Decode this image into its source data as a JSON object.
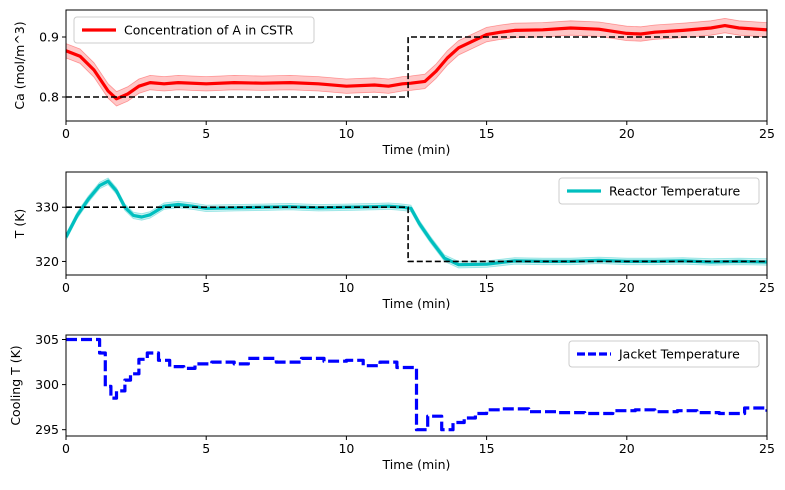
{
  "chart_data": [
    {
      "type": "line",
      "xlabel": "Time (min)",
      "ylabel": "Ca (mol/m^3)",
      "xlim": [
        0,
        25
      ],
      "ylim": [
        0.76,
        0.945
      ],
      "xticks": [
        0,
        5,
        10,
        15,
        20,
        25
      ],
      "yticks": [
        0.8,
        0.9
      ],
      "ytick_labels": [
        "0.8",
        "0.9"
      ],
      "legend_position": "upper-left",
      "series": [
        {
          "name": "Concentration of A in CSTR",
          "style": "solid",
          "color": "#ff0000",
          "band_color": "#ff0000",
          "x": [
            0,
            0.5,
            1,
            1.5,
            1.8,
            2.2,
            2.6,
            3,
            3.5,
            4,
            5,
            6,
            7,
            8,
            9,
            10,
            11,
            11.5,
            12,
            12.3,
            12.8,
            13.2,
            13.6,
            14,
            14.5,
            15,
            15.5,
            16,
            17,
            18,
            19,
            20,
            20.5,
            21,
            22,
            23,
            23.5,
            24,
            25
          ],
          "y": [
            0.877,
            0.868,
            0.845,
            0.81,
            0.797,
            0.805,
            0.818,
            0.824,
            0.822,
            0.824,
            0.822,
            0.824,
            0.823,
            0.824,
            0.822,
            0.818,
            0.82,
            0.818,
            0.822,
            0.823,
            0.826,
            0.843,
            0.865,
            0.882,
            0.893,
            0.904,
            0.908,
            0.911,
            0.912,
            0.915,
            0.913,
            0.906,
            0.905,
            0.908,
            0.911,
            0.915,
            0.919,
            0.915,
            0.912
          ],
          "band": 0.012
        },
        {
          "name": "",
          "style": "dashed",
          "color": "#000000",
          "x": [
            0,
            12.2,
            12.2,
            25
          ],
          "y": [
            0.8,
            0.8,
            0.9,
            0.9
          ]
        }
      ]
    },
    {
      "type": "line",
      "xlabel": "Time (min)",
      "ylabel": "T (K)",
      "xlim": [
        0,
        25
      ],
      "ylim": [
        317.5,
        336.5
      ],
      "xticks": [
        0,
        5,
        10,
        15,
        20,
        25
      ],
      "yticks": [
        320,
        330
      ],
      "ytick_labels": [
        "320",
        "330"
      ],
      "legend_position": "upper-right",
      "series": [
        {
          "name": "Reactor Temperature",
          "style": "solid",
          "color": "#00bfbf",
          "band_color": "#00bfbf",
          "x": [
            0,
            0.4,
            0.8,
            1.2,
            1.5,
            1.8,
            2.1,
            2.4,
            2.7,
            3,
            3.5,
            4,
            4.5,
            5,
            6,
            7,
            8,
            9,
            10,
            11,
            11.5,
            12,
            12.3,
            12.6,
            13,
            13.5,
            14,
            15,
            15.5,
            16,
            17,
            18,
            19,
            20,
            21,
            22,
            23,
            24,
            25
          ],
          "y": [
            324.5,
            328.5,
            331.5,
            334,
            334.8,
            333,
            330,
            328.5,
            328.2,
            328.6,
            330.2,
            330.5,
            330.2,
            329.8,
            329.9,
            330,
            330.1,
            329.9,
            330,
            330.1,
            330.2,
            330,
            329.8,
            327,
            324,
            320.6,
            319.4,
            319.5,
            319.8,
            320.1,
            320,
            320,
            320.2,
            320,
            320,
            320.1,
            319.9,
            320,
            319.9
          ],
          "band": 0.6
        },
        {
          "name": "",
          "style": "dashed",
          "color": "#000000",
          "x": [
            0,
            12.2,
            12.2,
            25
          ],
          "y": [
            330,
            330,
            320,
            320
          ]
        }
      ]
    },
    {
      "type": "line",
      "xlabel": "Time (min)",
      "ylabel": "Cooling T (K)",
      "xlim": [
        0,
        25
      ],
      "ylim": [
        294.3,
        305.5
      ],
      "xticks": [
        0,
        5,
        10,
        15,
        20,
        25
      ],
      "yticks": [
        295,
        300,
        305
      ],
      "ytick_labels": [
        "295",
        "300",
        "305"
      ],
      "legend_position": "upper-right",
      "series": [
        {
          "name": "Jacket Temperature",
          "style": "dashed",
          "color": "#0000ff",
          "step": true,
          "x": [
            0,
            1.2,
            1.4,
            1.6,
            1.8,
            2.1,
            2.3,
            2.6,
            2.9,
            3.3,
            3.7,
            4.2,
            4.6,
            5.2,
            6,
            6.5,
            7.5,
            8.4,
            9.2,
            10,
            10.6,
            11.2,
            11.8,
            12.5,
            12.9,
            13.4,
            13.8,
            14.2,
            14.6,
            15,
            15.5,
            16.5,
            17.5,
            18.5,
            19.5,
            20.3,
            21,
            21.8,
            22.5,
            23.3,
            24.2,
            25
          ],
          "y": [
            305,
            303.5,
            299.8,
            298.5,
            299.3,
            300.5,
            301.2,
            302.8,
            303.5,
            302.7,
            302,
            301.8,
            302.3,
            302.5,
            302.3,
            302.9,
            302.5,
            302.9,
            302.6,
            302.7,
            302.1,
            302.5,
            301.9,
            295,
            296.5,
            295,
            295.8,
            296.3,
            296.8,
            297.2,
            297.3,
            297,
            296.9,
            296.8,
            297.1,
            297.2,
            297,
            297.1,
            296.9,
            296.8,
            297.4,
            297
          ]
        }
      ]
    }
  ]
}
